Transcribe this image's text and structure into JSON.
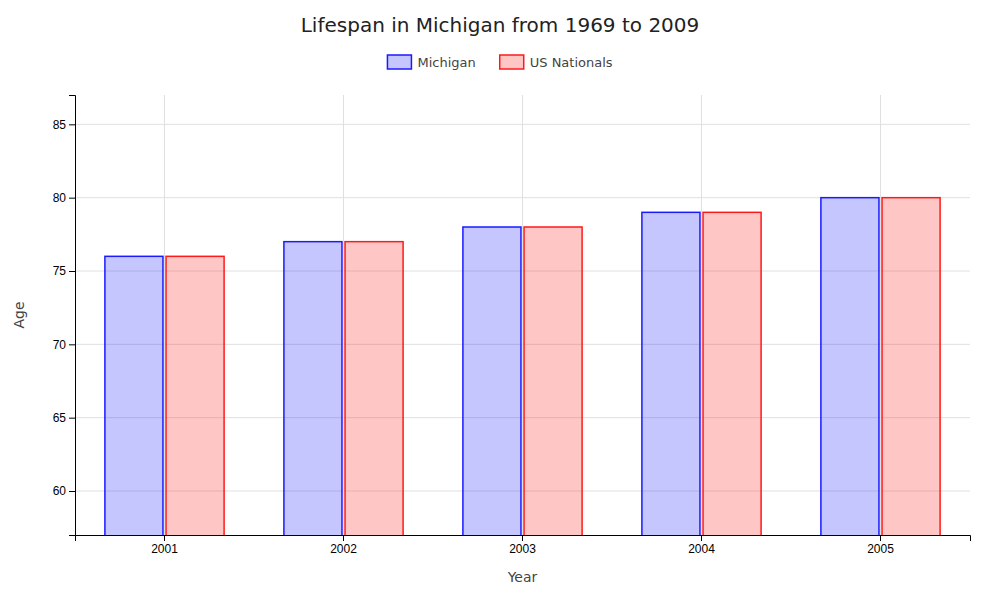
{
  "chart_data": {
    "type": "bar",
    "title": "Lifespan in Michigan from 1969 to 2009",
    "xlabel": "Year",
    "ylabel": "Age",
    "categories": [
      "2001",
      "2002",
      "2003",
      "2004",
      "2005"
    ],
    "series": [
      {
        "name": "Michigan",
        "color": "#1a1aff",
        "values": [
          76,
          77,
          78,
          79,
          80
        ]
      },
      {
        "name": "US Nationals",
        "color": "#ff1a1a",
        "values": [
          76,
          77,
          78,
          79,
          80
        ]
      }
    ],
    "ylim": [
      57,
      87
    ],
    "yticks": [
      60,
      65,
      70,
      75,
      80,
      85
    ],
    "grid": true,
    "legend": "top"
  }
}
